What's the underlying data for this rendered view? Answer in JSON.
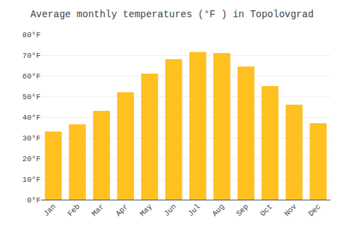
{
  "chart_data": {
    "type": "bar",
    "title": "Average monthly temperatures (°F ) in Topolovgrad",
    "categories": [
      "Jan",
      "Feb",
      "Mar",
      "Apr",
      "May",
      "Jun",
      "Jul",
      "Aug",
      "Sep",
      "Oct",
      "Nov",
      "Dec"
    ],
    "values": [
      33,
      36.5,
      43,
      52,
      61,
      68,
      71.5,
      71,
      64.5,
      55,
      46,
      37
    ],
    "color": "#FFC020",
    "ylim": [
      0,
      80
    ],
    "yticks": [
      {
        "value": 0,
        "label": "0°F"
      },
      {
        "value": 10,
        "label": "10°F"
      },
      {
        "value": 20,
        "label": "20°F"
      },
      {
        "value": 30,
        "label": "30°F"
      },
      {
        "value": 40,
        "label": "40°F"
      },
      {
        "value": 50,
        "label": "50°F"
      },
      {
        "value": 60,
        "label": "60°F"
      },
      {
        "value": 70,
        "label": "70°F"
      },
      {
        "value": 80,
        "label": "80°F"
      }
    ],
    "grid": true
  }
}
